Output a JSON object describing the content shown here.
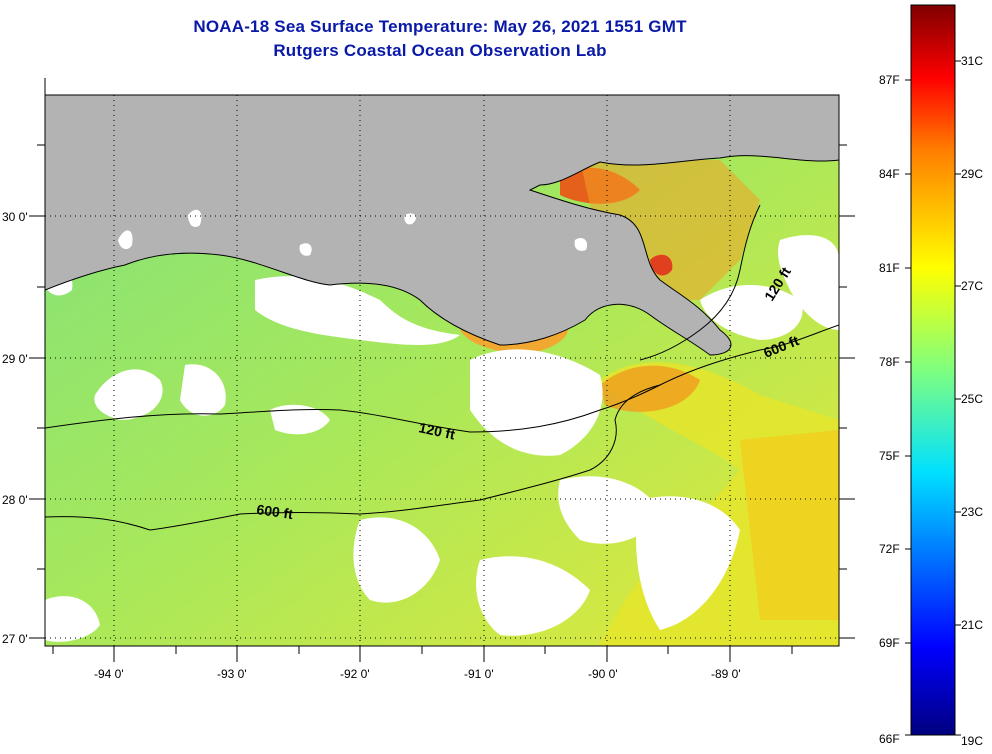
{
  "title": {
    "line1": "NOAA-18 Sea Surface Temperature:  May 26, 2021 1551 GMT",
    "line2": "Rutgers Coastal Ocean Observation Lab"
  },
  "map": {
    "lon_ticks": [
      "-94 0'",
      "-93 0'",
      "-92 0'",
      "-91 0'",
      "-90 0'",
      "-89 0'"
    ],
    "lat_ticks": [
      "30 0'",
      "29 0'",
      "28 0'",
      "27 0'"
    ],
    "contours": {
      "isobath_120": "120 ft",
      "isobath_600": "600 ft"
    },
    "colors": {
      "land": "#b3b3b3",
      "cloud": "#ffffff",
      "water_base": "#7fe07a",
      "water_warm": "#e8e830",
      "water_hot": "#f08c20"
    }
  },
  "colorbar": {
    "fahrenheit_labels": [
      "87F",
      "84F",
      "81F",
      "78F",
      "75F",
      "72F",
      "69F",
      "66F"
    ],
    "celsius_labels": [
      "31C",
      "29C",
      "27C",
      "25C",
      "23C",
      "21C",
      "19C"
    ],
    "range_celsius": [
      19,
      32.2
    ]
  }
}
